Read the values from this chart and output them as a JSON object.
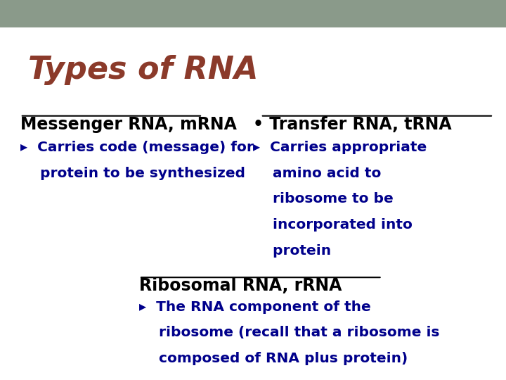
{
  "title": "Types of RNA",
  "title_color": "#8B3A2A",
  "title_fontsize": 32,
  "bg_color": "#FFFFFF",
  "header_bar_color": "#8A9A8A",
  "header_bar_height": 0.072,
  "mrna_heading": "Messenger RNA, mRNA",
  "mrna_heading_color": "#000000",
  "mrna_heading_fontsize": 17,
  "mrna_bullet_line1": "▸  Carries code (message) for",
  "mrna_bullet_line2": "    protein to be synthesized",
  "mrna_bullet_color": "#00008B",
  "mrna_bullet_fontsize": 14.5,
  "trna_heading": "• Transfer RNA, tRNA",
  "trna_heading_color": "#000000",
  "trna_heading_fontsize": 17,
  "trna_bullet_line1": "▸  Carries appropriate",
  "trna_bullet_line2": "    amino acid to",
  "trna_bullet_line3": "    ribosome to be",
  "trna_bullet_line4": "    incorporated into",
  "trna_bullet_line5": "    protein",
  "trna_bullet_color": "#00008B",
  "trna_bullet_fontsize": 14.5,
  "rrna_heading": "Ribosomal RNA, rRNA",
  "rrna_heading_color": "#000000",
  "rrna_heading_fontsize": 17,
  "rrna_bullet_line1": "▸  The RNA component of the",
  "rrna_bullet_line2": "    ribosome (recall that a ribosome is",
  "rrna_bullet_line3": "    composed of RNA plus protein)",
  "rrna_bullet_color": "#00008B",
  "rrna_bullet_fontsize": 14.5
}
